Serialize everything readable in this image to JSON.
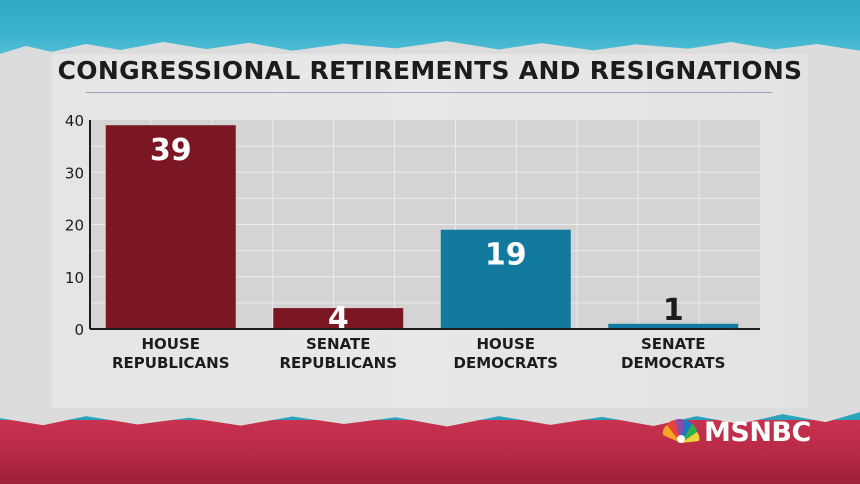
{
  "title": "CONGRESSIONAL RETIREMENTS AND RESIGNATIONS",
  "brand": {
    "logo_text": "MSNBC",
    "logo_icon": "peacock-logo-icon"
  },
  "colors": {
    "republican": "#7b1722",
    "democrat": "#137a9f",
    "plot_bg": "#d4d4d4",
    "grid": "#ebebeb",
    "axis": "#1c1c1c"
  },
  "chart_data": {
    "type": "bar",
    "title": "CONGRESSIONAL RETIREMENTS AND RESIGNATIONS",
    "categories": [
      [
        "HOUSE",
        "REPUBLICANS"
      ],
      [
        "SENATE",
        "REPUBLICANS"
      ],
      [
        "HOUSE",
        "DEMOCRATS"
      ],
      [
        "SENATE",
        "DEMOCRATS"
      ]
    ],
    "values": [
      39,
      4,
      19,
      1
    ],
    "value_labels": [
      "39",
      "4",
      "19",
      "1"
    ],
    "bar_colors": [
      "#7b1722",
      "#7b1722",
      "#137a9f",
      "#137a9f"
    ],
    "yticks": [
      "0",
      "10",
      "20",
      "30",
      "40"
    ],
    "ylim": [
      0,
      40
    ],
    "xlabel": "",
    "ylabel": "",
    "grid": true,
    "legend": "none"
  }
}
